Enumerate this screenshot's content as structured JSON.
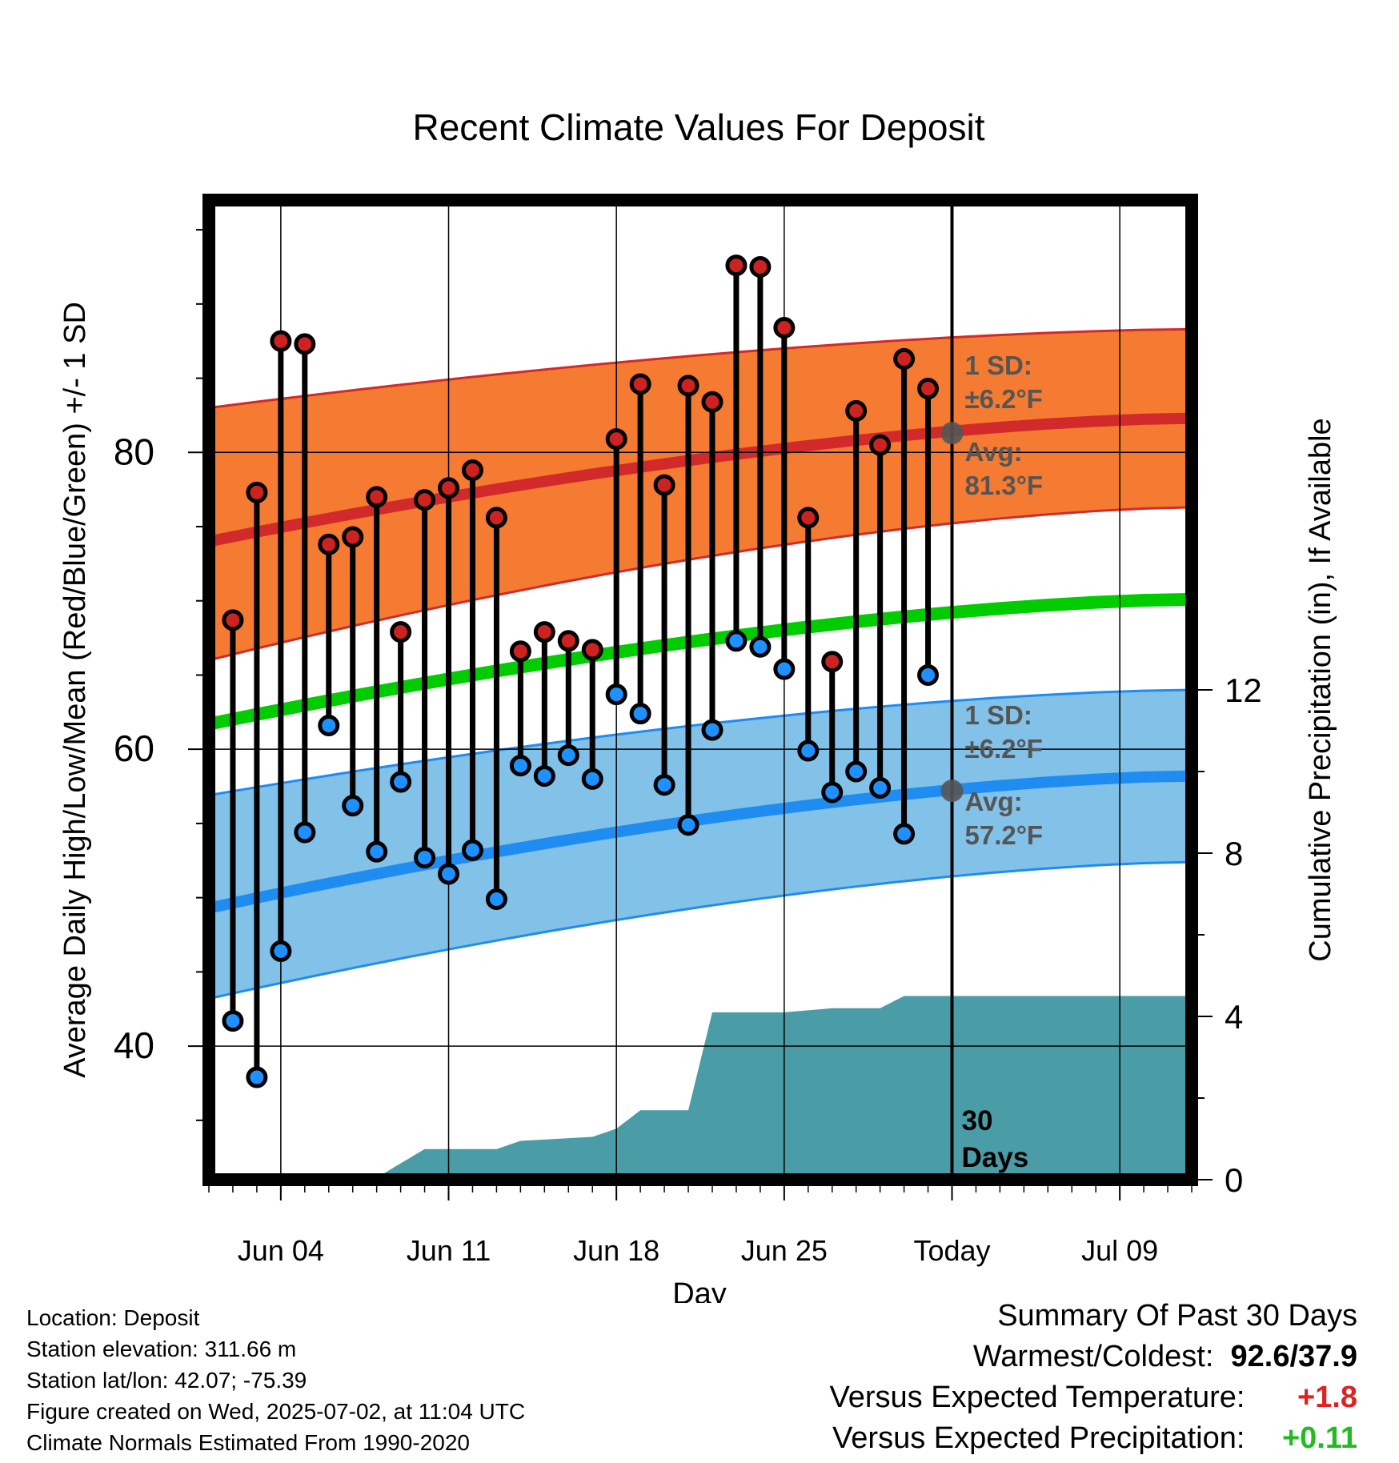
{
  "chart_data": {
    "type": "line",
    "title": "Recent Climate Values For Deposit",
    "xlabel": "Day",
    "ylabel_left": "Average Daily High/Low/Mean (Red/Blue/Green) +/- 1 SD",
    "ylabel_right": "Cumulative Precipitation (in), If Available",
    "x_range": [
      "2025-06-01",
      "2025-07-12"
    ],
    "y_left_range": [
      31,
      97
    ],
    "y_right_range": [
      0,
      24
    ],
    "x_ticks": [
      {
        "date": "2025-06-04",
        "label": "Jun 04"
      },
      {
        "date": "2025-06-11",
        "label": "Jun 11"
      },
      {
        "date": "2025-06-18",
        "label": "Jun 18"
      },
      {
        "date": "2025-06-25",
        "label": "Jun 25"
      },
      {
        "date": "2025-07-02",
        "label": "Today"
      },
      {
        "date": "2025-07-09",
        "label": "Jul 09"
      }
    ],
    "y_left_ticks": [
      40,
      60,
      80
    ],
    "y_right_ticks": [
      0,
      4,
      8,
      12
    ],
    "dates": [
      "2025-06-02",
      "2025-06-03",
      "2025-06-04",
      "2025-06-05",
      "2025-06-06",
      "2025-06-07",
      "2025-06-08",
      "2025-06-09",
      "2025-06-10",
      "2025-06-11",
      "2025-06-12",
      "2025-06-13",
      "2025-06-14",
      "2025-06-15",
      "2025-06-16",
      "2025-06-17",
      "2025-06-18",
      "2025-06-19",
      "2025-06-20",
      "2025-06-21",
      "2025-06-22",
      "2025-06-23",
      "2025-06-24",
      "2025-06-25",
      "2025-06-26",
      "2025-06-27",
      "2025-06-28",
      "2025-06-29",
      "2025-06-30",
      "2025-07-01"
    ],
    "daily_high": [
      68.7,
      77.3,
      87.5,
      87.3,
      73.8,
      74.3,
      77.0,
      67.9,
      76.8,
      77.6,
      78.8,
      75.6,
      66.6,
      67.9,
      67.3,
      66.7,
      80.9,
      84.6,
      77.8,
      84.5,
      83.4,
      92.6,
      92.5,
      88.4,
      75.6,
      65.9,
      82.8,
      80.5,
      86.3,
      84.3
    ],
    "daily_low": [
      41.7,
      37.9,
      46.4,
      54.4,
      61.6,
      56.2,
      53.1,
      57.8,
      52.7,
      51.6,
      53.2,
      49.9,
      58.9,
      58.2,
      59.6,
      58.0,
      63.7,
      62.4,
      57.6,
      54.9,
      61.3,
      67.3,
      66.9,
      65.4,
      59.9,
      57.1,
      58.5,
      57.4,
      54.3,
      65.0
    ],
    "normal_high": {
      "dates": [
        "2025-06-01",
        "2025-07-12"
      ],
      "avg": [
        74.0,
        82.3
      ],
      "sd_band": [
        [
          66.0,
          83.0
        ],
        [
          76.3,
          88.3
        ]
      ]
    },
    "normal_low": {
      "dates": [
        "2025-06-01",
        "2025-07-12"
      ],
      "avg": [
        49.3,
        58.2
      ],
      "sd_band": [
        [
          43.2,
          56.9
        ],
        [
          52.4,
          64.0
        ]
      ]
    },
    "normal_mean": {
      "dates": [
        "2025-06-01",
        "2025-07-12"
      ],
      "avg": [
        61.7,
        70.1
      ]
    },
    "precip_cumulative": {
      "dates": [
        "2025-06-01",
        "2025-06-08",
        "2025-06-10",
        "2025-06-12",
        "2025-06-13",
        "2025-06-14",
        "2025-06-17",
        "2025-06-18",
        "2025-06-19",
        "2025-06-21",
        "2025-06-22",
        "2025-06-25",
        "2025-06-27",
        "2025-06-29",
        "2025-06-30",
        "2025-07-01",
        "2025-07-12"
      ],
      "values": [
        0,
        0.05,
        0.75,
        0.75,
        0.75,
        0.95,
        1.05,
        1.25,
        1.7,
        1.7,
        4.1,
        4.1,
        4.2,
        4.2,
        4.5,
        4.5,
        4.5
      ]
    },
    "annotations": {
      "high_sd": "1 SD:",
      "high_sd_value": "±6.2°F",
      "high_avg": "Avg:",
      "high_avg_value": "81.3°F",
      "low_sd": "1 SD:",
      "low_sd_value": "±6.2°F",
      "low_avg": "Avg:",
      "low_avg_value": "57.2°F",
      "days_line1": "30",
      "days_line2": "Days",
      "today_high_avg": 81.3,
      "today_low_avg": 57.2
    },
    "colors": {
      "high_band": "#f47b31",
      "high_line": "#d22a2a",
      "low_band": "#82c1e8",
      "low_line": "#1e8cf0",
      "mean_line": "#00cc00",
      "precip": "#4a9ca6",
      "high_marker": "#cc2222",
      "low_marker": "#1e90ff",
      "annotation": "#555555"
    }
  },
  "footer": {
    "location": "Location: Deposit",
    "elevation": "Station elevation: 311.66 m",
    "latlon": "Station lat/lon: 42.07; -75.39",
    "created": "Figure created on Wed, 2025-07-02, at 11:04 UTC",
    "normals": "Climate Normals Estimated From 1990-2020"
  },
  "summary": {
    "title": "Summary Of Past 30 Days",
    "warm_cold_label": "Warmest/Coldest:",
    "warm_cold_value": "92.6/37.9",
    "temp_label": "Versus Expected Temperature:",
    "temp_value": "+1.8",
    "temp_color": "#dd2222",
    "precip_label": "Versus Expected Precipitation:",
    "precip_value": "+0.11",
    "precip_color": "#22bb22"
  }
}
